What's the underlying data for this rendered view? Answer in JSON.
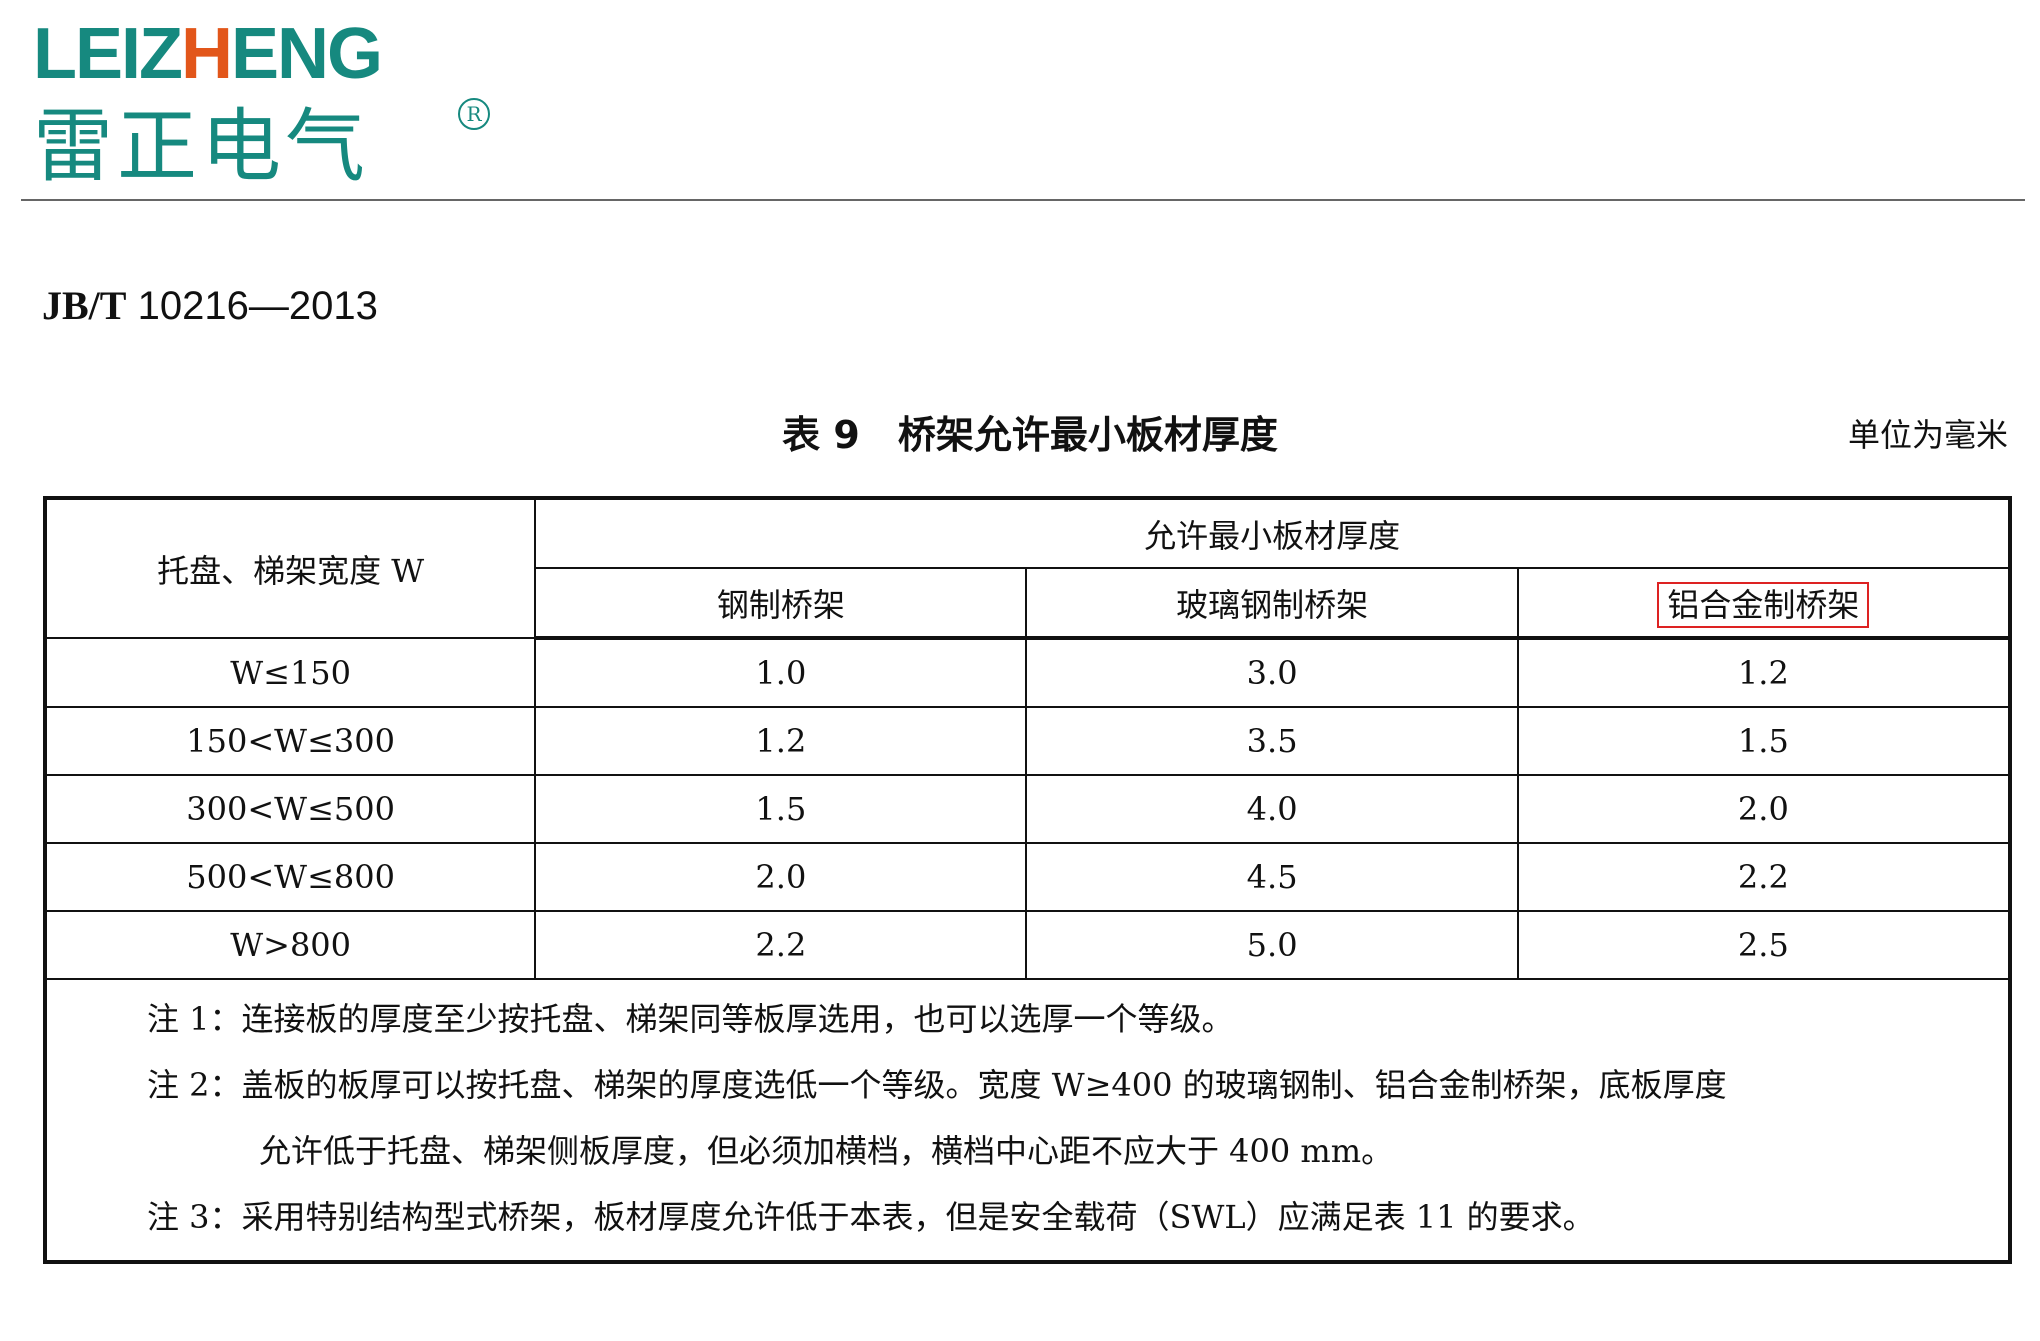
{
  "logo": {
    "text_en_a": "LEIZ",
    "text_en_h": "H",
    "text_en_b": "ENG",
    "text_cn": "雷正电气",
    "registered": "R",
    "colors": {
      "teal": "#16897f",
      "orange": "#e2561a"
    }
  },
  "standard": {
    "code_prefix": "JB/T",
    "code": "10216—2013"
  },
  "table_title": "表 9　桥架允许最小板材厚度",
  "unit": "单位为毫米",
  "table": {
    "width_header": "托盘、梯架宽度 W",
    "group_header": "允许最小板材厚度",
    "columns": [
      "钢制桥架",
      "玻璃钢制桥架",
      "铝合金制桥架"
    ],
    "highlighted_column_color": "#dd2222",
    "rows": [
      {
        "width": "W≤150",
        "values": [
          "1.0",
          "3.0",
          "1.2"
        ]
      },
      {
        "width": "150<W≤300",
        "values": [
          "1.2",
          "3.5",
          "1.5"
        ]
      },
      {
        "width": "300<W≤500",
        "values": [
          "1.5",
          "4.0",
          "2.0"
        ]
      },
      {
        "width": "500<W≤800",
        "values": [
          "2.0",
          "4.5",
          "2.2"
        ]
      },
      {
        "width": "W>800",
        "values": [
          "2.2",
          "5.0",
          "2.5"
        ]
      }
    ],
    "notes": [
      "注 1：连接板的厚度至少按托盘、梯架同等板厚选用，也可以选厚一个等级。",
      "注 2：盖板的板厚可以按托盘、梯架的厚度选低一个等级。宽度 W≥400 的玻璃钢制、铝合金制桥架，底板厚度",
      "允许低于托盘、梯架侧板厚度，但必须加横档，横档中心距不应大于 400 mm。",
      "注 3：采用特别结构型式桥架，板材厚度允许低于本表，但是安全载荷（SWL）应满足表 11 的要求。"
    ]
  }
}
